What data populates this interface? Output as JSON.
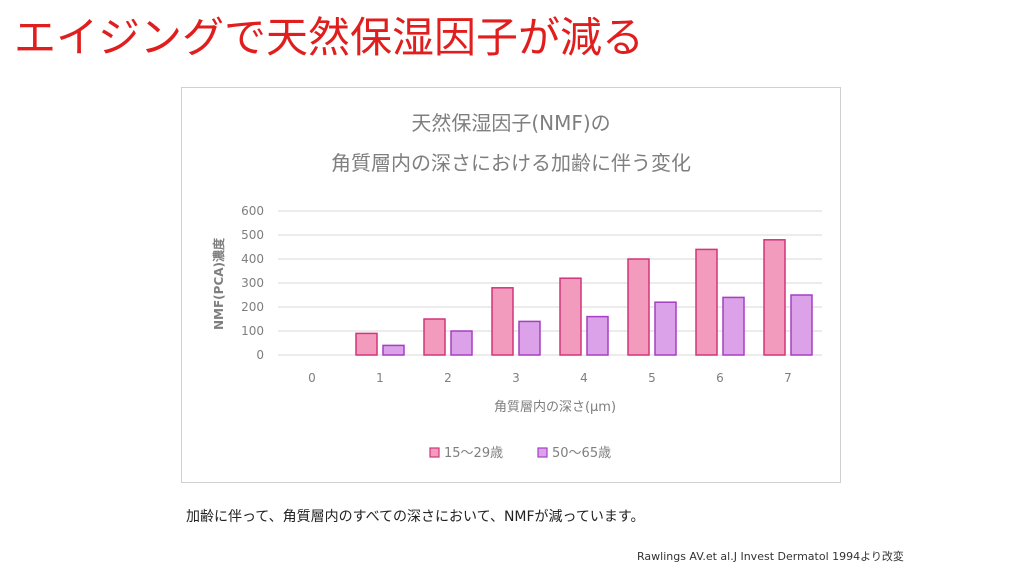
{
  "slide": {
    "title": "エイジングで天然保湿因子が減る",
    "caption": "加齢に伴って、角質層内のすべての深さにおいて、NMFが減っています。",
    "source": "Rawlings AV.et al.J Invest Dermatol 1994より改変"
  },
  "colors": {
    "title": "#e01e1e",
    "series1_fill": "#f29bbd",
    "series1_stroke": "#d2357a",
    "series2_fill": "#dba2ea",
    "series2_stroke": "#a63fc1",
    "grid": "#d9d9d9",
    "text": "#7f7f7f"
  },
  "chart_data": {
    "type": "bar",
    "title": [
      "天然保湿因子(NMF)の",
      "角質層内の深さにおける加齢に伴う変化"
    ],
    "xlabel": "角質層内の深さ(μm)",
    "ylabel": "NMF(PCA)濃度",
    "categories": [
      "0",
      "1",
      "2",
      "3",
      "4",
      "5",
      "6",
      "7"
    ],
    "ylim": [
      0,
      600
    ],
    "yticks": [
      0,
      100,
      200,
      300,
      400,
      500,
      600
    ],
    "grid": true,
    "legend_position": "bottom",
    "series": [
      {
        "name": "15〜29歳",
        "values": [
          0,
          90,
          150,
          280,
          320,
          400,
          440,
          480
        ]
      },
      {
        "name": "50〜65歳",
        "values": [
          0,
          40,
          100,
          140,
          160,
          220,
          240,
          250
        ]
      }
    ]
  }
}
